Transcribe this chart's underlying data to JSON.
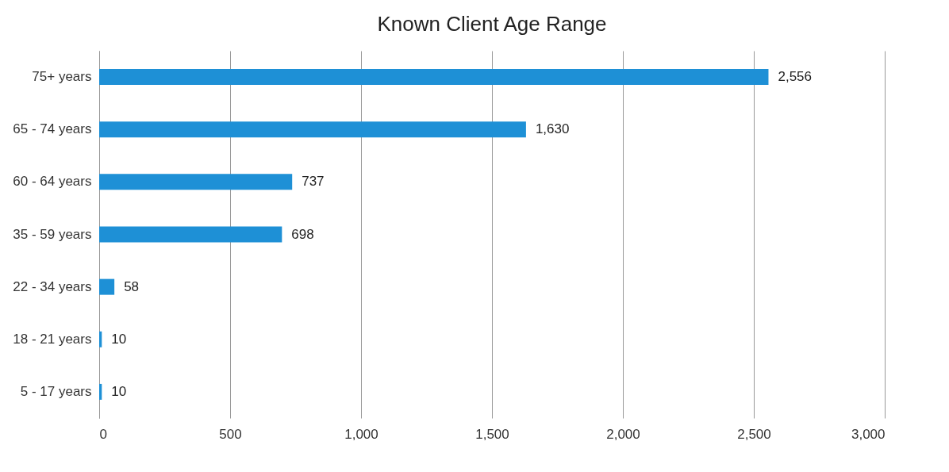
{
  "chart_data": {
    "type": "bar",
    "orientation": "horizontal",
    "title": "Known Client Age Range",
    "categories": [
      "75+ years",
      "65 - 74 years",
      "60 - 64 years",
      "35 - 59 years",
      "22 - 34 years",
      "18 - 21 years",
      "5 - 17 years"
    ],
    "values": [
      2556,
      1630,
      737,
      698,
      58,
      10,
      10
    ],
    "color": "#1e90d6",
    "xlim": [
      0,
      3000
    ],
    "xticks": [
      0,
      500,
      {
        "value": 1000,
        "label": "1,000"
      },
      {
        "value": 1500,
        "label": "1,500"
      },
      {
        "value": 2000,
        "label": "2,000"
      },
      {
        "value": 2500,
        "label": "2,500"
      },
      {
        "value": 3000,
        "label": "3,000"
      }
    ],
    "value_labels": [
      "2,556",
      "1,630",
      "737",
      "698",
      "58",
      "10",
      "10"
    ],
    "grid": "x"
  }
}
